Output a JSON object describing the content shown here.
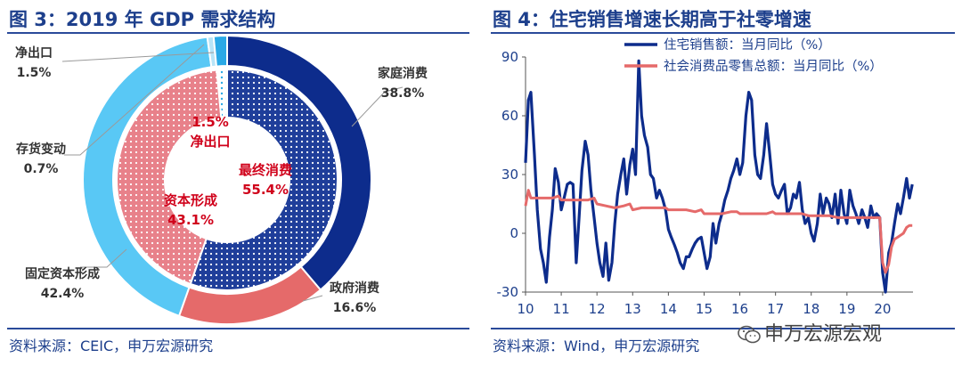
{
  "left_panel": {
    "title": "图 3：2019 年 GDP 需求结构",
    "source": "资料来源：CEIC，申万宏源研究"
  },
  "right_panel": {
    "title": "图 4：住宅销售增速长期高于社零增速",
    "source": "资料来源：Wind，申万宏源研究"
  },
  "watermark": "申万宏源宏观",
  "colors": {
    "household": "#0d2c8c",
    "government": "#e56a6a",
    "fixed_capital": "#59c8f5",
    "inventory": "#b8e4f7",
    "net_exports": "#2aa9e6",
    "inner_consumption": "#1f3e9a",
    "inner_capital": "#e8818a",
    "residential": "#0d2c8c",
    "retail": "#e56a6a",
    "title": "#1d3f8c",
    "highlight": "#d0021b"
  },
  "chart_data": [
    {
      "type": "pie",
      "variant": "nested-donut",
      "outer_ring": [
        {
          "name": "家庭消费",
          "value": 38.8,
          "label": "38.8%"
        },
        {
          "name": "政府消费",
          "value": 16.6,
          "label": "16.6%"
        },
        {
          "name": "固定资本形成",
          "value": 42.4,
          "label": "42.4%"
        },
        {
          "name": "存货变动",
          "value": 0.7,
          "label": "0.7%"
        },
        {
          "name": "净出口",
          "value": 1.5,
          "label": "1.5%"
        }
      ],
      "inner_ring": [
        {
          "name": "最终消费",
          "value": 55.4,
          "label": "55.4%"
        },
        {
          "name": "资本形成",
          "value": 43.1,
          "label": "43.1%"
        },
        {
          "name": "净出口",
          "value": 1.5,
          "label": "1.5%"
        }
      ]
    },
    {
      "type": "line",
      "x_ticks": [
        "10",
        "11",
        "12",
        "13",
        "14",
        "15",
        "16",
        "17",
        "18",
        "19",
        "20"
      ],
      "x_range": [
        2010.0,
        2020.85
      ],
      "ylim": [
        -30,
        90
      ],
      "y_ticks": [
        90,
        60,
        30,
        0,
        -30
      ],
      "legend_position": "top",
      "series": [
        {
          "name": "住宅销售额：当月同比（%）",
          "points": [
            [
              2010.0,
              36
            ],
            [
              2010.08,
              68
            ],
            [
              2010.15,
              72
            ],
            [
              2010.25,
              40
            ],
            [
              2010.33,
              12
            ],
            [
              2010.42,
              -8
            ],
            [
              2010.5,
              -15
            ],
            [
              2010.58,
              -25
            ],
            [
              2010.67,
              -2
            ],
            [
              2010.75,
              12
            ],
            [
              2010.83,
              33
            ],
            [
              2010.92,
              26
            ],
            [
              2011.0,
              12
            ],
            [
              2011.08,
              18
            ],
            [
              2011.17,
              25
            ],
            [
              2011.25,
              26
            ],
            [
              2011.33,
              25
            ],
            [
              2011.42,
              -15
            ],
            [
              2011.5,
              8
            ],
            [
              2011.58,
              32
            ],
            [
              2011.67,
              47
            ],
            [
              2011.75,
              40
            ],
            [
              2011.83,
              22
            ],
            [
              2011.92,
              8
            ],
            [
              2012.0,
              -5
            ],
            [
              2012.08,
              -15
            ],
            [
              2012.17,
              -22
            ],
            [
              2012.25,
              -5
            ],
            [
              2012.33,
              -24
            ],
            [
              2012.42,
              -15
            ],
            [
              2012.5,
              5
            ],
            [
              2012.58,
              20
            ],
            [
              2012.67,
              30
            ],
            [
              2012.75,
              38
            ],
            [
              2012.83,
              20
            ],
            [
              2012.92,
              35
            ],
            [
              2013.0,
              43
            ],
            [
              2013.08,
              30
            ],
            [
              2013.17,
              88
            ],
            [
              2013.25,
              60
            ],
            [
              2013.33,
              50
            ],
            [
              2013.42,
              44
            ],
            [
              2013.5,
              30
            ],
            [
              2013.58,
              28
            ],
            [
              2013.67,
              18
            ],
            [
              2013.75,
              22
            ],
            [
              2013.83,
              18
            ],
            [
              2013.92,
              12
            ],
            [
              2014.0,
              2
            ],
            [
              2014.08,
              -2
            ],
            [
              2014.17,
              -6
            ],
            [
              2014.25,
              -10
            ],
            [
              2014.33,
              -15
            ],
            [
              2014.42,
              -18
            ],
            [
              2014.5,
              -12
            ],
            [
              2014.58,
              -12
            ],
            [
              2014.67,
              -8
            ],
            [
              2014.75,
              -5
            ],
            [
              2014.83,
              -3
            ],
            [
              2014.92,
              -2
            ],
            [
              2015.0,
              -10
            ],
            [
              2015.08,
              -18
            ],
            [
              2015.17,
              -12
            ],
            [
              2015.25,
              5
            ],
            [
              2015.33,
              -5
            ],
            [
              2015.42,
              5
            ],
            [
              2015.5,
              10
            ],
            [
              2015.58,
              17
            ],
            [
              2015.67,
              22
            ],
            [
              2015.75,
              28
            ],
            [
              2015.83,
              32
            ],
            [
              2015.92,
              38
            ],
            [
              2016.0,
              30
            ],
            [
              2016.08,
              36
            ],
            [
              2016.17,
              60
            ],
            [
              2016.25,
              72
            ],
            [
              2016.33,
              68
            ],
            [
              2016.42,
              40
            ],
            [
              2016.5,
              30
            ],
            [
              2016.58,
              28
            ],
            [
              2016.67,
              40
            ],
            [
              2016.75,
              56
            ],
            [
              2016.83,
              42
            ],
            [
              2016.92,
              25
            ],
            [
              2017.0,
              20
            ],
            [
              2017.08,
              18
            ],
            [
              2017.17,
              22
            ],
            [
              2017.25,
              25
            ],
            [
              2017.33,
              10
            ],
            [
              2017.42,
              13
            ],
            [
              2017.5,
              20
            ],
            [
              2017.58,
              18
            ],
            [
              2017.67,
              26
            ],
            [
              2017.75,
              12
            ],
            [
              2017.83,
              5
            ],
            [
              2017.92,
              8
            ],
            [
              2018.0,
              0
            ],
            [
              2018.08,
              -4
            ],
            [
              2018.17,
              5
            ],
            [
              2018.25,
              20
            ],
            [
              2018.33,
              10
            ],
            [
              2018.42,
              18
            ],
            [
              2018.5,
              15
            ],
            [
              2018.58,
              8
            ],
            [
              2018.67,
              20
            ],
            [
              2018.75,
              5
            ],
            [
              2018.83,
              22
            ],
            [
              2018.92,
              10
            ],
            [
              2019.0,
              5
            ],
            [
              2019.08,
              22
            ],
            [
              2019.17,
              14
            ],
            [
              2019.25,
              10
            ],
            [
              2019.33,
              5
            ],
            [
              2019.42,
              12
            ],
            [
              2019.5,
              8
            ],
            [
              2019.58,
              3
            ],
            [
              2019.67,
              14
            ],
            [
              2019.75,
              8
            ],
            [
              2019.83,
              10
            ],
            [
              2019.92,
              8
            ],
            [
              2020.0,
              -20
            ],
            [
              2020.08,
              -30
            ],
            [
              2020.17,
              -10
            ],
            [
              2020.25,
              -5
            ],
            [
              2020.33,
              5
            ],
            [
              2020.42,
              15
            ],
            [
              2020.5,
              10
            ],
            [
              2020.58,
              18
            ],
            [
              2020.67,
              28
            ],
            [
              2020.75,
              18
            ],
            [
              2020.83,
              25
            ]
          ]
        },
        {
          "name": "社会消费品零售总额：当月同比（%）",
          "points": [
            [
              2010.0,
              14
            ],
            [
              2010.08,
              22
            ],
            [
              2010.15,
              18
            ],
            [
              2010.25,
              18
            ],
            [
              2010.5,
              18
            ],
            [
              2010.75,
              18
            ],
            [
              2010.92,
              19
            ],
            [
              2011.0,
              17
            ],
            [
              2011.25,
              17
            ],
            [
              2011.5,
              17
            ],
            [
              2011.75,
              17
            ],
            [
              2011.92,
              18
            ],
            [
              2012.0,
              15
            ],
            [
              2012.25,
              14
            ],
            [
              2012.5,
              13
            ],
            [
              2012.75,
              14
            ],
            [
              2012.92,
              15
            ],
            [
              2013.0,
              12
            ],
            [
              2013.25,
              13
            ],
            [
              2013.5,
              13
            ],
            [
              2013.75,
              13
            ],
            [
              2013.92,
              13
            ],
            [
              2014.0,
              12
            ],
            [
              2014.25,
              12
            ],
            [
              2014.5,
              12
            ],
            [
              2014.75,
              11
            ],
            [
              2014.92,
              12
            ],
            [
              2015.0,
              10
            ],
            [
              2015.25,
              10
            ],
            [
              2015.5,
              10
            ],
            [
              2015.75,
              11
            ],
            [
              2015.92,
              11
            ],
            [
              2016.0,
              10
            ],
            [
              2016.25,
              10
            ],
            [
              2016.5,
              10
            ],
            [
              2016.75,
              10
            ],
            [
              2016.92,
              11
            ],
            [
              2017.0,
              10
            ],
            [
              2017.25,
              10
            ],
            [
              2017.5,
              10
            ],
            [
              2017.75,
              10
            ],
            [
              2017.92,
              9
            ],
            [
              2018.0,
              9
            ],
            [
              2018.25,
              9
            ],
            [
              2018.5,
              9
            ],
            [
              2018.75,
              8
            ],
            [
              2018.92,
              8
            ],
            [
              2019.0,
              8
            ],
            [
              2019.25,
              8
            ],
            [
              2019.5,
              8
            ],
            [
              2019.75,
              8
            ],
            [
              2019.92,
              8
            ],
            [
              2020.0,
              -15
            ],
            [
              2020.08,
              -20
            ],
            [
              2020.17,
              -16
            ],
            [
              2020.25,
              -7
            ],
            [
              2020.33,
              -3
            ],
            [
              2020.42,
              -2
            ],
            [
              2020.5,
              -1
            ],
            [
              2020.58,
              0
            ],
            [
              2020.67,
              3
            ],
            [
              2020.75,
              4
            ],
            [
              2020.83,
              4
            ]
          ]
        }
      ]
    }
  ]
}
